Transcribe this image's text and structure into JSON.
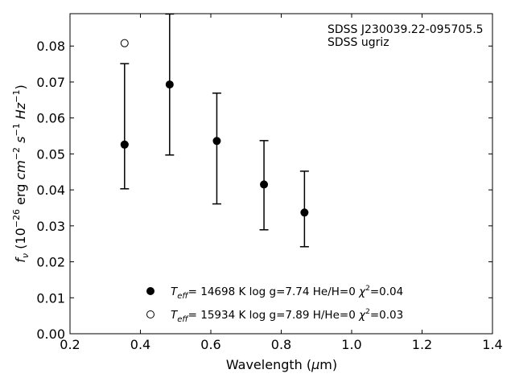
{
  "chart_data": {
    "type": "scatter",
    "xlabel": "Wavelength (μm)",
    "ylabel": "f_ν (10^-26 erg cm^-2 s^-1 Hz^-1)",
    "xlim": [
      0.2,
      1.4
    ],
    "ylim": [
      0.0,
      0.089
    ],
    "xticks": [
      "0.2",
      "0.4",
      "0.6",
      "0.8",
      "1.0",
      "1.2",
      "1.4"
    ],
    "yticks": [
      "0.00",
      "0.01",
      "0.02",
      "0.03",
      "0.04",
      "0.05",
      "0.06",
      "0.07",
      "0.08"
    ],
    "grid": false,
    "legend_position": "lower-center",
    "annotation": {
      "object": "SDSS J230039.22-095705.5",
      "filters": "SDSS ugriz"
    },
    "observed": {
      "points": [
        {
          "x": 0.355,
          "y": 0.0526,
          "err_low": 0.0403,
          "err_high": 0.0751
        },
        {
          "x": 0.483,
          "y": 0.0693,
          "err_low": 0.0497,
          "err_high": 0.0889
        },
        {
          "x": 0.617,
          "y": 0.0536,
          "err_low": 0.0361,
          "err_high": 0.0669
        },
        {
          "x": 0.751,
          "y": 0.0415,
          "err_low": 0.0289,
          "err_high": 0.0537
        },
        {
          "x": 0.866,
          "y": 0.0337,
          "err_low": 0.0242,
          "err_high": 0.0452
        }
      ]
    },
    "series": [
      {
        "marker": "filled-circle",
        "teff": "14698",
        "logg": "log g=7.74",
        "comp": "He/H=0",
        "chi2": "0.04",
        "points": [
          {
            "x": 0.355,
            "y": 0.0526
          }
        ]
      },
      {
        "marker": "open-circle",
        "teff": "15934",
        "logg": "log g=7.89",
        "comp": "H/He=0",
        "chi2": "0.03",
        "points": [
          {
            "x": 0.355,
            "y": 0.0808
          }
        ]
      }
    ]
  }
}
